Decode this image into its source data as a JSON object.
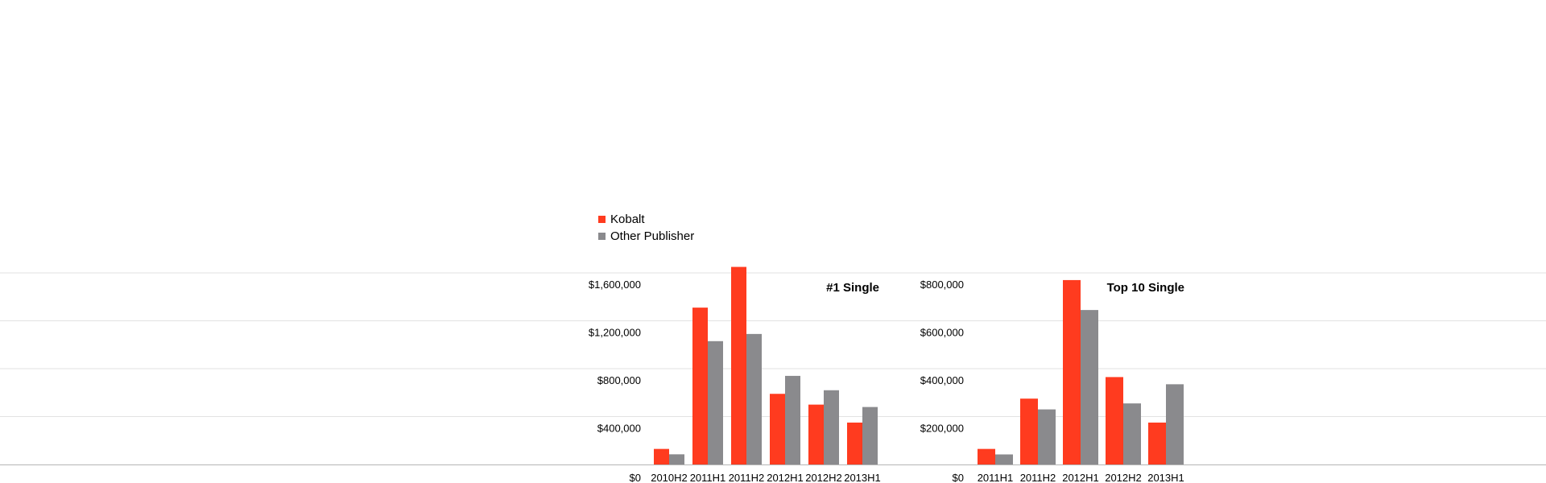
{
  "legend": [
    {
      "label": "Kobalt",
      "color": "#ff3b1f"
    },
    {
      "label": "Other Publisher",
      "color": "#8a8a8d"
    }
  ],
  "colors": {
    "gridline": "#e2e2e2",
    "baseline": "#b5b5b5"
  },
  "chart_data": [
    {
      "type": "bar",
      "title": "#1 Single",
      "xlabel": "",
      "ylabel": "",
      "categories": [
        "2010H2",
        "2011H1",
        "2011H2",
        "2012H1",
        "2012H2",
        "2013H1"
      ],
      "series": [
        {
          "name": "Kobalt",
          "values": [
            130000,
            1310000,
            1650000,
            590000,
            500000,
            350000
          ]
        },
        {
          "name": "Other Publisher",
          "values": [
            85000,
            1030000,
            1090000,
            740000,
            620000,
            480000
          ]
        }
      ],
      "yticks": [
        "$0",
        "$400,000",
        "$800,000",
        "$1,200,000",
        "$1,600,000"
      ],
      "ylim": [
        0,
        1600000
      ],
      "grid": true,
      "legend_position": "top-left"
    },
    {
      "type": "bar",
      "title": "Top 10 Single",
      "xlabel": "",
      "ylabel": "",
      "categories": [
        "2011H1",
        "2011H2",
        "2012H1",
        "2012H2",
        "2013H1"
      ],
      "series": [
        {
          "name": "Kobalt",
          "values": [
            65000,
            275000,
            770000,
            365000,
            175000
          ]
        },
        {
          "name": "Other Publisher",
          "values": [
            42000,
            230000,
            645000,
            255000,
            335000
          ]
        }
      ],
      "yticks": [
        "$0",
        "$200,000",
        "$400,000",
        "$600,000",
        "$800,000"
      ],
      "ylim": [
        0,
        800000
      ],
      "grid": true,
      "legend_position": "top-left"
    }
  ]
}
